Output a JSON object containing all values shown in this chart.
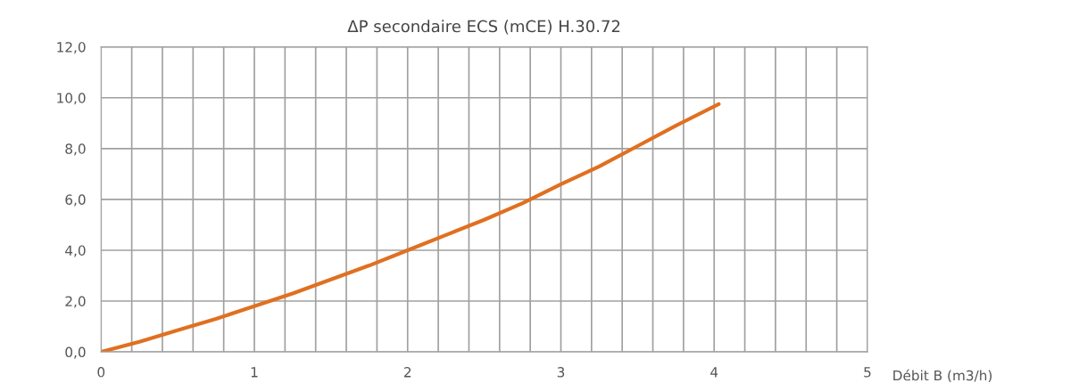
{
  "chart_data": {
    "type": "line",
    "title": "ΔP secondaire ECS (mCE) H.30.72",
    "xlabel": "Débit B (m3/h)",
    "x": [
      0,
      0.25,
      0.5,
      0.75,
      1,
      1.25,
      1.5,
      1.75,
      2,
      2.25,
      2.5,
      2.75,
      3,
      3.25,
      3.5,
      3.75,
      4.03
    ],
    "series": [
      {
        "color": "#e07020",
        "values": [
          0,
          0.4,
          0.85,
          1.3,
          1.8,
          2.3,
          2.85,
          3.4,
          4.0,
          4.6,
          5.2,
          5.85,
          6.6,
          7.3,
          8.1,
          8.9,
          9.75
        ]
      }
    ],
    "xlim": [
      0,
      5
    ],
    "xticks": [
      0,
      {
        "value": 0.2,
        "label": null
      },
      {
        "value": 0.4,
        "label": null
      },
      {
        "value": 0.6,
        "label": null
      },
      {
        "value": 0.8,
        "label": null
      },
      1,
      {
        "value": 1.2,
        "label": null
      },
      {
        "value": 1.4,
        "label": null
      },
      {
        "value": 1.6,
        "label": null
      },
      {
        "value": 1.8,
        "label": null
      },
      2,
      {
        "value": 2.2,
        "label": null
      },
      {
        "value": 2.4,
        "label": null
      },
      {
        "value": 2.6,
        "label": null
      },
      {
        "value": 2.8,
        "label": null
      },
      3,
      {
        "value": 3.2,
        "label": null
      },
      {
        "value": 3.4,
        "label": null
      },
      {
        "value": 3.6,
        "label": null
      },
      {
        "value": 3.8,
        "label": null
      },
      4,
      {
        "value": 4.2,
        "label": null
      },
      {
        "value": 4.4,
        "label": null
      },
      {
        "value": 4.6,
        "label": null
      },
      {
        "value": 4.8,
        "label": null
      },
      5
    ],
    "ylim": [
      0,
      12
    ],
    "yticks": [
      {
        "value": 0,
        "label": "0,0"
      },
      {
        "value": 2,
        "label": "2,0"
      },
      {
        "value": 4,
        "label": "4,0"
      },
      {
        "value": 6,
        "label": "6,0"
      },
      {
        "value": 8,
        "label": "8,0"
      },
      {
        "value": 10,
        "label": "10,0"
      },
      {
        "value": 12,
        "label": "12,0"
      }
    ],
    "grid": true,
    "legend": false,
    "marker": "none",
    "line_style": "solid"
  }
}
